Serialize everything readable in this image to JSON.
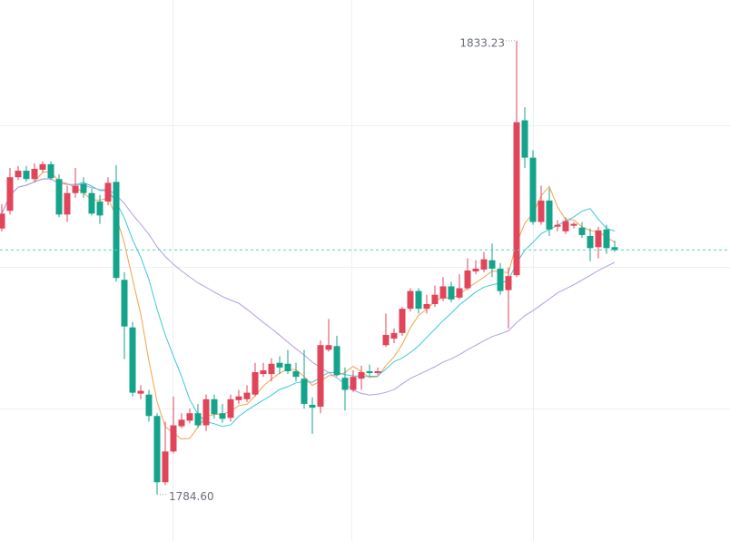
{
  "chart_data": {
    "type": "candlestick",
    "ylim": [
      1779.6,
      1837.6
    ],
    "up_color": "#e0455a",
    "down_color": "#14a38b",
    "last_price_color": "#5fcfb8",
    "open": [
      1813.1,
      1815.0,
      1818.6,
      1819.3,
      1818.4,
      1819.4,
      1820.0,
      1818.4,
      1814.6,
      1816.9,
      1817.9,
      1816.9,
      1816.0,
      1816.0,
      1818.1,
      1807.6,
      1802.5,
      1795.4,
      1795.3,
      1793.0,
      1785.9,
      1789.2,
      1791.9,
      1792.5,
      1793.3,
      1792.0,
      1794.8,
      1793.3,
      1792.8,
      1794.7,
      1794.8,
      1795.3,
      1797.5,
      1797.5,
      1798.7,
      1798.6,
      1797.8,
      1797.0,
      1794.2,
      1794.0,
      1800.1,
      1800.5,
      1797.1,
      1795.8,
      1797.0,
      1797.8,
      1797.6,
      1800.6,
      1801.3,
      1801.9,
      1804.5,
      1806.4,
      1804.5,
      1805.0,
      1805.6,
      1806.9,
      1805.7,
      1806.7,
      1808.5,
      1808.7,
      1809.7,
      1808.8,
      1806.5,
      1808.1,
      1824.7,
      1820.7,
      1813.8,
      1816.1,
      1813.3,
      1812.8,
      1813.4,
      1813.2,
      1812.3,
      1811.1,
      1813.0,
      1811.1
    ],
    "high": [
      1815.7,
      1819.6,
      1819.8,
      1819.8,
      1820.1,
      1820.3,
      1820.3,
      1818.9,
      1817.7,
      1819.6,
      1818.6,
      1817.4,
      1816.7,
      1818.6,
      1819.9,
      1808.4,
      1803.1,
      1796.3,
      1795.8,
      1793.3,
      1792.4,
      1795.1,
      1793.3,
      1793.8,
      1794.3,
      1795.3,
      1795.3,
      1794.3,
      1795.3,
      1795.8,
      1796.3,
      1798.7,
      1798.7,
      1799.2,
      1799.4,
      1800.1,
      1798.7,
      1800.1,
      1795.0,
      1801.1,
      1803.4,
      1801.6,
      1798.2,
      1797.9,
      1798.4,
      1798.5,
      1798.2,
      1804.0,
      1802.4,
      1804.7,
      1806.7,
      1806.7,
      1806.0,
      1807.0,
      1807.9,
      1807.4,
      1808.2,
      1809.9,
      1809.7,
      1810.6,
      1811.5,
      1809.4,
      1808.9,
      1833.23,
      1826.1,
      1821.5,
      1817.7,
      1817.4,
      1814.0,
      1814.3,
      1813.8,
      1813.8,
      1813.1,
      1813.3,
      1813.5,
      1811.8
    ],
    "low": [
      1812.8,
      1814.6,
      1818.3,
      1818.1,
      1818.1,
      1819.1,
      1818.3,
      1814.3,
      1813.8,
      1816.4,
      1816.4,
      1814.5,
      1813.6,
      1815.6,
      1807.4,
      1799.1,
      1795.1,
      1794.8,
      1792.4,
      1784.6,
      1785.6,
      1789.0,
      1791.7,
      1792.2,
      1791.7,
      1791.4,
      1792.7,
      1792.3,
      1792.4,
      1794.3,
      1794.5,
      1795.1,
      1797.2,
      1796.7,
      1797.5,
      1797.5,
      1796.7,
      1793.8,
      1791.1,
      1793.3,
      1799.9,
      1797.2,
      1793.6,
      1795.6,
      1795.8,
      1797.2,
      1797.4,
      1800.4,
      1800.8,
      1801.6,
      1804.2,
      1804.0,
      1804.0,
      1804.7,
      1805.3,
      1805.2,
      1805.5,
      1806.5,
      1808.2,
      1808.4,
      1807.9,
      1806.0,
      1802.4,
      1807.9,
      1819.6,
      1813.5,
      1813.5,
      1812.3,
      1812.8,
      1812.5,
      1813.1,
      1812.1,
      1809.6,
      1809.9,
      1810.4,
      1810.6
    ],
    "close": [
      1814.7,
      1818.6,
      1819.3,
      1818.4,
      1819.5,
      1820.0,
      1818.5,
      1814.6,
      1816.9,
      1817.7,
      1816.9,
      1814.7,
      1814.5,
      1818.0,
      1807.8,
      1802.6,
      1795.5,
      1795.7,
      1793.0,
      1785.9,
      1789.2,
      1792.0,
      1792.6,
      1793.3,
      1792.0,
      1794.8,
      1793.2,
      1792.7,
      1794.8,
      1795.1,
      1795.5,
      1797.7,
      1797.9,
      1798.6,
      1798.2,
      1797.8,
      1797.2,
      1794.3,
      1793.9,
      1800.6,
      1800.6,
      1797.4,
      1795.8,
      1797.2,
      1797.7,
      1797.6,
      1797.8,
      1801.7,
      1801.9,
      1804.5,
      1806.4,
      1804.5,
      1805.0,
      1806.0,
      1806.9,
      1805.5,
      1806.7,
      1808.6,
      1808.8,
      1809.8,
      1808.8,
      1806.4,
      1808.0,
      1824.5,
      1820.7,
      1813.8,
      1816.1,
      1813.0,
      1813.5,
      1813.9,
      1813.6,
      1812.4,
      1811.0,
      1812.9,
      1811.0,
      1810.8
    ],
    "max_label": "1833.23",
    "min_label": "1784.60",
    "moving_averages": [
      {
        "period": 5,
        "color": "#f5a04a"
      },
      {
        "period": 10,
        "color": "#3cc8d8"
      },
      {
        "period": 30,
        "color": "#b49be8"
      }
    ]
  }
}
